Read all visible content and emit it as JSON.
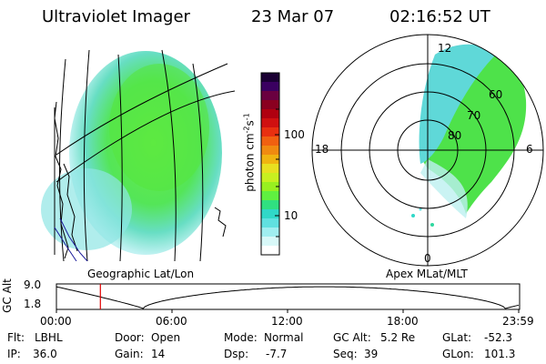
{
  "header": {
    "title": "Ultraviolet Imager",
    "date": "23 Mar 07",
    "time": "02:16:52 UT"
  },
  "colorbar": {
    "unit": "photon cm",
    "unit_exp1": "-2",
    "unit_mid": "s",
    "unit_exp2": "-1",
    "tick_100": "100",
    "tick_10": "10",
    "colors": [
      "#1a0033",
      "#3a0060",
      "#6a0040",
      "#8a0020",
      "#b00010",
      "#d01010",
      "#e83010",
      "#f06010",
      "#f08a10",
      "#f0b410",
      "#e8e020",
      "#c8f020",
      "#98f020",
      "#60f040",
      "#30e080",
      "#30d8c8",
      "#60e0e0",
      "#a0eef0",
      "#d8f8f8",
      "#ffffff"
    ]
  },
  "left_panel": {
    "label": "Geographic Lat/Lon"
  },
  "polar": {
    "label": "Apex MLat/MLT",
    "mlt_top": "12",
    "mlt_left": "18",
    "mlt_right": "6",
    "mlt_bottom": "0",
    "lat_60": "60",
    "lat_70": "70",
    "lat_80": "80"
  },
  "altplot": {
    "ylabel": "GC Alt",
    "ytop": "9.0",
    "ybottom": "1.8",
    "x_labels": [
      "00:00",
      "06:00",
      "12:00",
      "18:00",
      "23:59"
    ],
    "marker_hour": 2.28
  },
  "footer": {
    "flt_label": "Flt:",
    "flt_value": "LBHL",
    "ip_label": "IP:",
    "ip_value": "36.0",
    "door_label": "Door:",
    "door_value": "Open",
    "gain_label": "Gain:",
    "gain_value": "14",
    "mode_label": "Mode:",
    "mode_value": "Normal",
    "dsp_label": "Dsp:",
    "dsp_value": "-7.7",
    "gcalt_label": "GC Alt:",
    "gcalt_value": "5.2 Re",
    "seq_label": "Seq:",
    "seq_value": "39",
    "glat_label": "GLat:",
    "glat_value": "-52.3",
    "glon_label": "GLon:",
    "glon_value": "101.3"
  }
}
